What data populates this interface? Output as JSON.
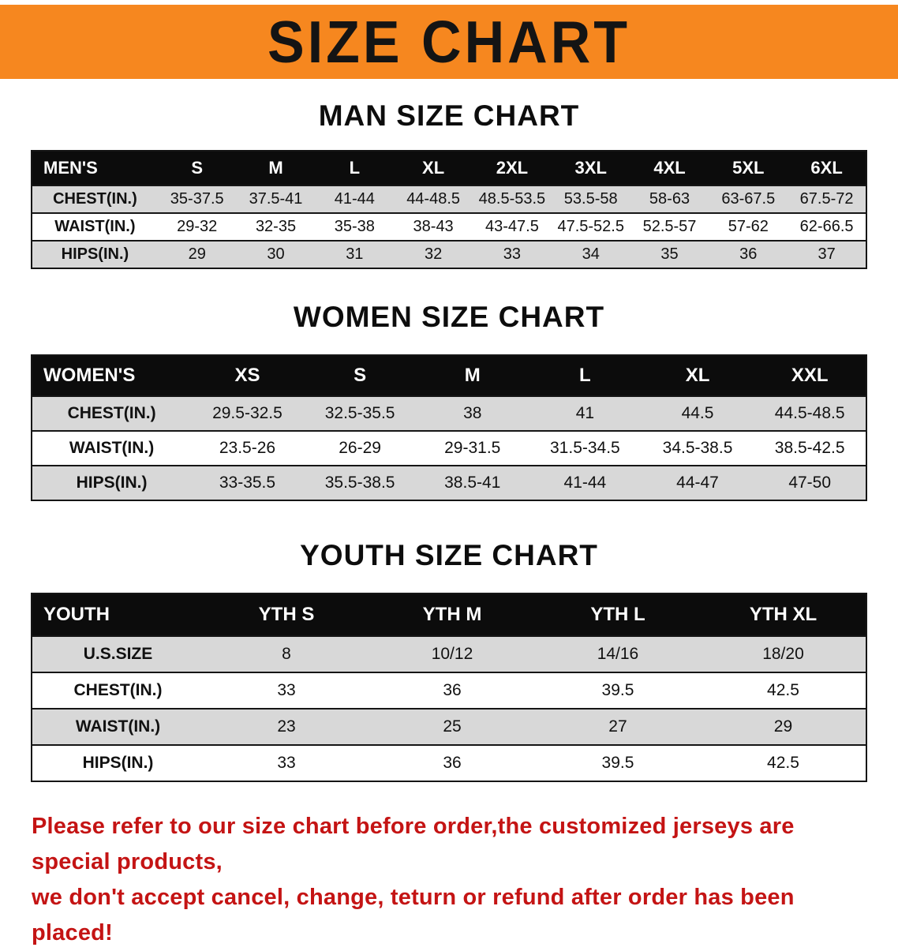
{
  "banner": {
    "title": "SIZE CHART"
  },
  "colors": {
    "banner_bg": "#f6871f",
    "table_header_bg": "#0c0c0c",
    "row_alt_bg": "#d8d8d8",
    "footer_text": "#c41414"
  },
  "sections": [
    {
      "heading": "MAN SIZE CHART",
      "header": [
        "MEN'S",
        "S",
        "M",
        "L",
        "XL",
        "2XL",
        "3XL",
        "4XL",
        "5XL",
        "6XL"
      ],
      "rows": [
        [
          "CHEST(IN.)",
          "35-37.5",
          "37.5-41",
          "41-44",
          "44-48.5",
          "48.5-53.5",
          "53.5-58",
          "58-63",
          "63-67.5",
          "67.5-72"
        ],
        [
          "WAIST(IN.)",
          "29-32",
          "32-35",
          "35-38",
          "38-43",
          "43-47.5",
          "47.5-52.5",
          "52.5-57",
          "57-62",
          "62-66.5"
        ],
        [
          "HIPS(IN.)",
          "29",
          "30",
          "31",
          "32",
          "33",
          "34",
          "35",
          "36",
          "37"
        ]
      ]
    },
    {
      "heading": "WOMEN SIZE CHART",
      "header": [
        "WOMEN'S",
        "XS",
        "S",
        "M",
        "L",
        "XL",
        "XXL"
      ],
      "rows": [
        [
          "CHEST(IN.)",
          "29.5-32.5",
          "32.5-35.5",
          "38",
          "41",
          "44.5",
          "44.5-48.5"
        ],
        [
          "WAIST(IN.)",
          "23.5-26",
          "26-29",
          "29-31.5",
          "31.5-34.5",
          "34.5-38.5",
          "38.5-42.5"
        ],
        [
          "HIPS(IN.)",
          "33-35.5",
          "35.5-38.5",
          "38.5-41",
          "41-44",
          "44-47",
          "47-50"
        ]
      ]
    },
    {
      "heading": "YOUTH SIZE CHART",
      "header": [
        "YOUTH",
        "YTH S",
        "YTH M",
        "YTH L",
        "YTH XL"
      ],
      "rows": [
        [
          "U.S.SIZE",
          "8",
          "10/12",
          "14/16",
          "18/20"
        ],
        [
          "CHEST(IN.)",
          "33",
          "36",
          "39.5",
          "42.5"
        ],
        [
          "WAIST(IN.)",
          "23",
          "25",
          "27",
          "29"
        ],
        [
          "HIPS(IN.)",
          "33",
          "36",
          "39.5",
          "42.5"
        ]
      ]
    }
  ],
  "footer": {
    "line1": "Please refer to our size chart before order,the customized jerseys are special products,",
    "line2": "we don't accept cancel, change, teturn or refund after order has been placed!"
  }
}
